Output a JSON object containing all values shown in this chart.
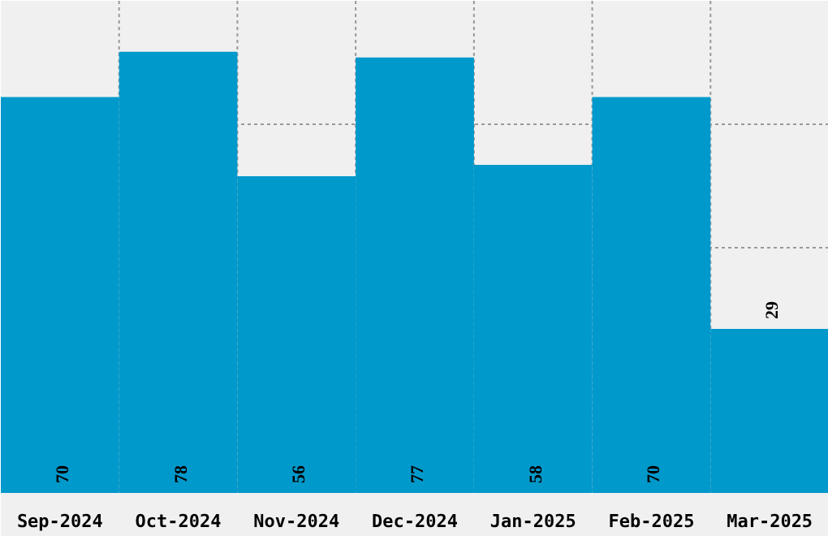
{
  "chart_data": {
    "type": "bar",
    "categories": [
      "Sep-2024",
      "Oct-2024",
      "Nov-2024",
      "Dec-2024",
      "Jan-2025",
      "Feb-2025",
      "Mar-2025"
    ],
    "values": [
      70,
      78,
      56,
      77,
      58,
      70,
      29
    ],
    "color": "#0099cc",
    "ylim": [
      0,
      87
    ],
    "tick_labels": "x",
    "grid": true,
    "data_labels": true
  }
}
